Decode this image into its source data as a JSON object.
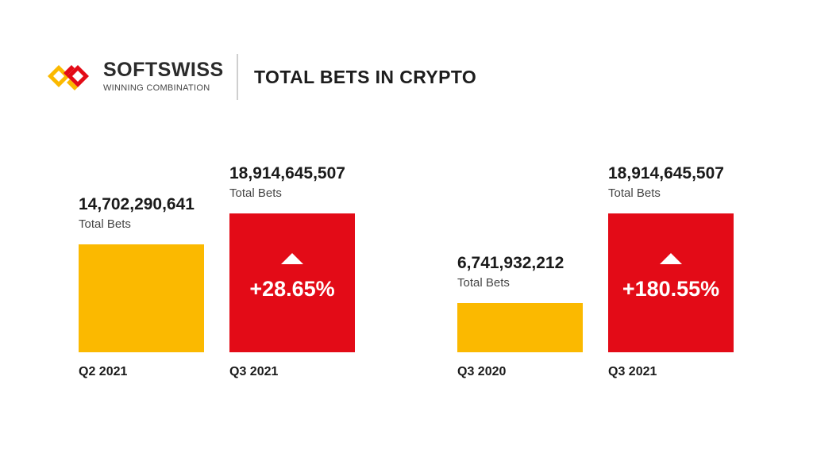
{
  "header": {
    "brand": "SOFTSWISS",
    "tagline": "WINNING COMBINATION",
    "headline": "TOTAL BETS IN CRYPTO"
  },
  "colors": {
    "previous": "#fbb900",
    "current": "#e30b17"
  },
  "chart_data": [
    {
      "type": "bar",
      "title": "TOTAL BETS IN CRYPTO",
      "categories": [
        "Q2 2021",
        "Q3 2021"
      ],
      "values": [
        14702290641,
        18914645507
      ],
      "value_labels": [
        "14,702,290,641",
        "18,914,645,507"
      ],
      "sub_label": "Total Bets",
      "change_label": "+28.65%",
      "ylim": [
        0,
        18914645507
      ]
    },
    {
      "type": "bar",
      "title": "TOTAL BETS IN CRYPTO",
      "categories": [
        "Q3 2020",
        "Q3 2021"
      ],
      "values": [
        6741932212,
        18914645507
      ],
      "value_labels": [
        "6,741,932,212",
        "18,914,645,507"
      ],
      "sub_label": "Total Bets",
      "change_label": "+180.55%",
      "ylim": [
        0,
        18914645507
      ]
    }
  ]
}
